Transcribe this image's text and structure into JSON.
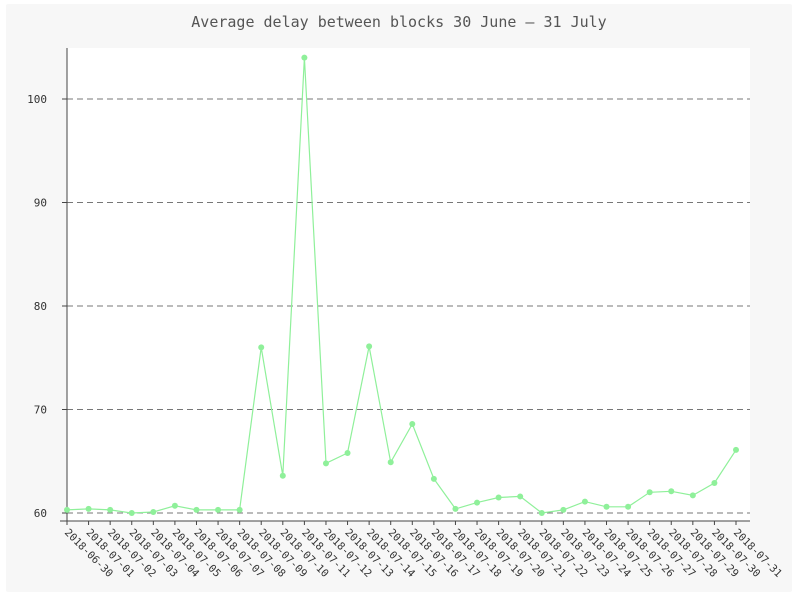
{
  "chart_data": {
    "type": "line",
    "title": "Average delay between blocks 30 June – 31 July",
    "xlabel": "",
    "ylabel": "",
    "ylim": [
      59,
      105
    ],
    "yticks": [
      60,
      70,
      80,
      90,
      100
    ],
    "grid": true,
    "legend": "none",
    "categories": [
      "2018-06-30",
      "2018-07-01",
      "2018-07-02",
      "2018-07-03",
      "2018-07-04",
      "2018-07-05",
      "2018-07-06",
      "2018-07-07",
      "2018-07-08",
      "2018-07-09",
      "2018-07-10",
      "2018-07-11",
      "2018-07-12",
      "2018-07-13",
      "2018-07-14",
      "2018-07-15",
      "2018-07-16",
      "2018-07-17",
      "2018-07-18",
      "2018-07-19",
      "2018-07-20",
      "2018-07-21",
      "2018-07-22",
      "2018-07-23",
      "2018-07-24",
      "2018-07-25",
      "2018-07-26",
      "2018-07-27",
      "2018-07-28",
      "2018-07-29",
      "2018-07-30",
      "2018-07-31"
    ],
    "series": [
      {
        "name": "",
        "color": "#8ff09a",
        "values": [
          60.3,
          60.4,
          60.3,
          60.0,
          60.1,
          60.7,
          60.3,
          60.3,
          60.3,
          76.0,
          63.6,
          104.0,
          64.8,
          65.8,
          76.1,
          64.9,
          68.6,
          63.3,
          60.4,
          61.0,
          61.5,
          61.6,
          60.0,
          60.3,
          61.1,
          60.6,
          60.6,
          62.0,
          62.1,
          61.7,
          62.9,
          66.1
        ]
      }
    ]
  }
}
